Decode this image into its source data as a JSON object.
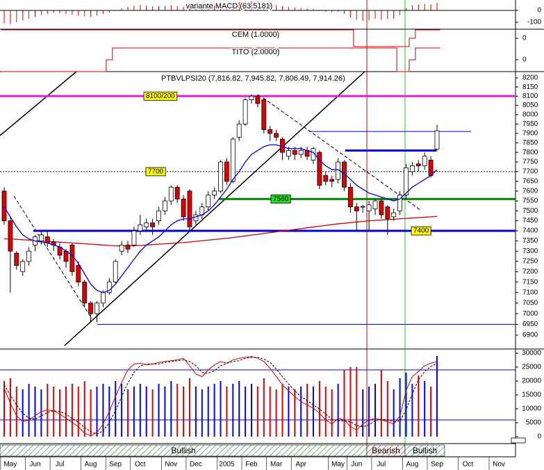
{
  "chart_data": {
    "type": "candlestick",
    "title": "PTBVLPSI20 (7,816.82, 7,945.82, 7,806.49, 7,914.26)",
    "categories": [
      null,
      "May",
      null,
      null,
      null,
      "Jun",
      null,
      null,
      null,
      "Jul",
      null,
      null,
      null,
      null,
      "Aug",
      null,
      null,
      null,
      "Sep",
      null,
      null,
      null,
      "Oct",
      null,
      null,
      null,
      null,
      "Nov",
      null,
      null,
      null,
      "Dec",
      null,
      null,
      null,
      null,
      "2005",
      null,
      null,
      null,
      "Feb",
      null,
      null,
      null,
      "Mar",
      null,
      null,
      null,
      "Apr",
      null,
      null,
      null,
      null,
      null,
      "May",
      null,
      null,
      "Jun",
      null,
      null,
      null,
      "Jul",
      null,
      null,
      null,
      null,
      "Aug",
      null,
      null,
      null,
      "Sep",
      null,
      null,
      null,
      null,
      "Oct",
      null,
      null,
      null,
      null,
      "Nov",
      null,
      null
    ],
    "open": [
      7600,
      7450,
      7290,
      7200,
      7250,
      7330,
      7350,
      7370,
      7345,
      7320,
      7300,
      7330,
      7230,
      7150,
      7050,
      7000,
      7050,
      7100,
      7150,
      7300,
      7330,
      7330,
      7400,
      7420,
      7440,
      7450,
      7500,
      7550,
      7620,
      7560,
      7600,
      7450,
      7480,
      7520,
      7580,
      7600,
      7750,
      7650,
      7880,
      7950,
      8080,
      8100,
      8080,
      7920,
      7900,
      7870,
      7780,
      7810,
      7790,
      7810,
      7760,
      7800,
      7680,
      7660,
      7660,
      7750,
      7620,
      7520,
      7520,
      7500,
      7510,
      7550,
      7520,
      7470,
      7500,
      7580,
      7700,
      7740,
      7730,
      7760,
      7816.82,
      null,
      null,
      null,
      null,
      null,
      null,
      null,
      null,
      null,
      null,
      null,
      null
    ],
    "high": [
      7620,
      7470,
      7300,
      7260,
      7320,
      7380,
      7400,
      7400,
      7360,
      7340,
      7310,
      7340,
      7250,
      7160,
      7060,
      7060,
      7110,
      7170,
      7260,
      7350,
      7350,
      7420,
      7480,
      7460,
      7460,
      7520,
      7570,
      7630,
      7630,
      7580,
      7610,
      7500,
      7540,
      7600,
      7620,
      7760,
      7770,
      7880,
      7970,
      8090,
      8110,
      8110,
      8090,
      7940,
      7920,
      7880,
      7830,
      7830,
      7830,
      7830,
      7830,
      7810,
      7700,
      7680,
      7770,
      7760,
      7640,
      7540,
      7530,
      7550,
      7560,
      7560,
      7530,
      7510,
      7600,
      7740,
      7750,
      7760,
      7800,
      7780,
      7945.82,
      null,
      null,
      null,
      null,
      null,
      null,
      null,
      null,
      null,
      null,
      null,
      null
    ],
    "low": [
      7430,
      7100,
      7210,
      7180,
      7230,
      7300,
      7330,
      7320,
      7300,
      7260,
      7220,
      7180,
      7130,
      7030,
      6960,
      6960,
      7030,
      7090,
      7140,
      7280,
      7290,
      7320,
      7380,
      7400,
      7380,
      7430,
      7480,
      7530,
      7540,
      7450,
      7400,
      7430,
      7460,
      7500,
      7560,
      7590,
      7630,
      7640,
      7860,
      7940,
      8060,
      8040,
      7900,
      7860,
      7860,
      7760,
      7760,
      7760,
      7770,
      7760,
      7740,
      7610,
      7630,
      7620,
      7640,
      7600,
      7490,
      7400,
      7490,
      7400,
      7480,
      7460,
      7380,
      7450,
      7480,
      7560,
      7680,
      7700,
      7710,
      7670,
      7806.49,
      null,
      null,
      null,
      null,
      null,
      null,
      null,
      null,
      null,
      null,
      null,
      null
    ],
    "close": [
      7450,
      7300,
      7230,
      7250,
      7300,
      7370,
      7380,
      7340,
      7330,
      7280,
      7250,
      7200,
      7150,
      7050,
      7000,
      7050,
      7100,
      7150,
      7250,
      7330,
      7310,
      7400,
      7430,
      7440,
      7420,
      7500,
      7550,
      7620,
      7560,
      7470,
      7420,
      7480,
      7520,
      7580,
      7600,
      7750,
      7650,
      7870,
      7950,
      8080,
      8100,
      8060,
      7920,
      7900,
      7880,
      7800,
      7810,
      7790,
      7810,
      7780,
      7820,
      7630,
      7650,
      7650,
      7750,
      7620,
      7520,
      7500,
      7522,
      7530,
      7550,
      7480,
      7460,
      7490,
      7580,
      7720,
      7730,
      7730,
      7780,
      7680,
      7914.26,
      null,
      null,
      null,
      null,
      null,
      null,
      null,
      null,
      null,
      null,
      null,
      null
    ],
    "up_color": "#ffffff",
    "down_color": "#e00000",
    "log_scale": true,
    "ylim": [
      6900,
      8200
    ],
    "yticks": [
      8200,
      8150,
      8100,
      8050,
      8000,
      7950,
      7900,
      7850,
      7800,
      7750,
      7700,
      7650,
      7600,
      7550,
      7500,
      7450,
      7400,
      7350,
      7300,
      7250,
      7200,
      7150,
      7100,
      7050,
      7000,
      6950,
      6900
    ],
    "overlays": [
      {
        "color": "#cc0000",
        "values": [
          7360,
          7360,
          7358,
          7356,
          7354,
          7352,
          7350,
          7348,
          7346,
          7344,
          7342,
          7340,
          7338,
          7336,
          7334,
          7332,
          7330,
          7328,
          7326,
          7326,
          7326,
          7327,
          7328,
          7330,
          7332,
          7334,
          7336,
          7338,
          7340,
          7342,
          7345,
          7348,
          7351,
          7354,
          7357,
          7360,
          7363,
          7367,
          7371,
          7375,
          7379,
          7383,
          7387,
          7391,
          7395,
          7399,
          7403,
          7407,
          7411,
          7415,
          7419,
          7423,
          7427,
          7431,
          7435,
          7438,
          7441,
          7444,
          7447,
          7450,
          7452,
          7454,
          7456,
          7458,
          7460,
          7462,
          7464,
          7466,
          7468,
          7470,
          7472,
          null,
          null,
          null,
          null,
          null,
          null,
          null,
          null,
          null,
          null,
          null,
          null
        ]
      },
      {
        "color": "#0000ee",
        "values": [
          7520,
          7470,
          7420,
          7380,
          7360,
          7350,
          7345,
          7340,
          7330,
          7320,
          7300,
          7280,
          7240,
          7190,
          7140,
          7110,
          7100,
          7110,
          7140,
          7180,
          7220,
          7260,
          7300,
          7330,
          7350,
          7370,
          7400,
          7430,
          7450,
          7460,
          7460,
          7470,
          7480,
          7500,
          7530,
          7570,
          7610,
          7660,
          7700,
          7750,
          7790,
          7810,
          7830,
          7840,
          7840,
          7830,
          7820,
          7820,
          7820,
          7810,
          7800,
          7760,
          7730,
          7710,
          7710,
          7690,
          7660,
          7630,
          7610,
          7590,
          7580,
          7570,
          7560,
          7550,
          7560,
          7590,
          7620,
          7640,
          7660,
          7680,
          7710,
          null,
          null,
          null,
          null,
          null,
          null,
          null,
          null,
          null,
          null,
          null,
          null
        ]
      }
    ],
    "levels": [
      {
        "value": 8100,
        "label": "8100/200",
        "color": "#e020e0"
      },
      {
        "value": 7700,
        "color": "#000000"
      },
      {
        "value": 7560,
        "color": "#008000"
      },
      {
        "value": 7400,
        "color": "#0000cc"
      },
      {
        "value": 7910,
        "color": "#0000cc"
      },
      {
        "value": 7810,
        "color": "#0000cc"
      },
      {
        "value": 6950,
        "color": "#0000cc"
      }
    ],
    "signals": [
      "Bullish",
      "Bearish",
      "Bullish"
    ],
    "indicators": [
      {
        "type": "histogram",
        "title": "variante MACD (63.5181)",
        "color": "#e00000",
        "zero_line": true,
        "ylim": [
          -159,
          88
        ],
        "yticks": [
          0,
          -100
        ],
        "values": [
          -110,
          -115,
          -100,
          -85,
          -70,
          -55,
          -40,
          -30,
          -20,
          -25,
          -30,
          -35,
          -45,
          -50,
          -55,
          -45,
          -30,
          -15,
          5,
          20,
          30,
          40,
          45,
          40,
          35,
          35,
          40,
          45,
          35,
          30,
          20,
          25,
          30,
          35,
          40,
          50,
          50,
          60,
          70,
          75,
          80,
          75,
          65,
          55,
          45,
          35,
          30,
          25,
          20,
          15,
          10,
          -5,
          -10,
          -15,
          -10,
          -30,
          -60,
          -80,
          -90,
          -85,
          -70,
          -80,
          -75,
          -70,
          -40,
          20,
          45,
          50,
          55,
          50,
          63.5181,
          null,
          null,
          null,
          null,
          null,
          null,
          null,
          null,
          null,
          null,
          null,
          null
        ]
      },
      {
        "type": "step",
        "title": "CEM (1.0000)",
        "color": "#cc0000",
        "ylim": [
          -1,
          1
        ],
        "yticks": [
          0
        ],
        "values": [
          1,
          1,
          1,
          1,
          1,
          1,
          1,
          1,
          1,
          1,
          1,
          1,
          1,
          1,
          1,
          1,
          1,
          1,
          1,
          1,
          1,
          1,
          1,
          1,
          1,
          1,
          1,
          1,
          1,
          1,
          1,
          1,
          1,
          1,
          1,
          1,
          1,
          1,
          1,
          1,
          1,
          1,
          1,
          1,
          1,
          1,
          1,
          1,
          1,
          1,
          1,
          1,
          1,
          1,
          1,
          1,
          1,
          -1,
          -1,
          -1,
          -1,
          -1,
          -1,
          -1,
          -1,
          -1,
          0,
          1,
          1,
          1,
          1,
          null,
          null,
          null,
          null,
          null,
          null,
          null,
          null,
          null,
          null,
          null,
          null
        ]
      },
      {
        "type": "step",
        "title": "TITO (2.0000)",
        "color": "#cc0000",
        "ylim": [
          -2,
          2
        ],
        "yticks": [
          0
        ],
        "values": [
          -2,
          -2,
          -2,
          -2,
          -2,
          -2,
          -2,
          -2,
          -2,
          -2,
          -2,
          -2,
          -2,
          -2,
          -2,
          -2,
          -2,
          0,
          2,
          2,
          2,
          2,
          2,
          2,
          2,
          2,
          2,
          2,
          2,
          2,
          2,
          2,
          2,
          2,
          2,
          2,
          2,
          2,
          2,
          2,
          2,
          2,
          2,
          2,
          2,
          2,
          2,
          2,
          2,
          2,
          2,
          2,
          2,
          2,
          2,
          2,
          2,
          2,
          2,
          2,
          2,
          2,
          2,
          2,
          -2,
          -2,
          0,
          2,
          2,
          2,
          2,
          null,
          null,
          null,
          null,
          null,
          null,
          null,
          null,
          null,
          null,
          null,
          null
        ]
      },
      {
        "type": "volume",
        "up_color": "#0000ff",
        "down_color": "#e00000",
        "ylim": [
          0,
          30000
        ],
        "yticks": [
          30000,
          25000,
          20000,
          15000,
          10000,
          5000,
          0
        ],
        "values": [
          20000,
          21000,
          18000,
          17000,
          19000,
          18000,
          17000,
          19000,
          18000,
          17000,
          18000,
          19000,
          18000,
          20000,
          17000,
          18000,
          19000,
          18000,
          20000,
          19000,
          17000,
          18000,
          19000,
          18000,
          17000,
          19000,
          18000,
          20000,
          19000,
          18000,
          21000,
          18000,
          17000,
          18000,
          19000,
          20000,
          18000,
          19000,
          20000,
          18000,
          19000,
          18000,
          21000,
          18000,
          17000,
          19000,
          18000,
          17000,
          18000,
          19000,
          18000,
          20000,
          18000,
          17000,
          19000,
          24000,
          25000,
          25000,
          17000,
          18000,
          19000,
          24000,
          20000,
          17000,
          21000,
          23000,
          19000,
          22000,
          20000,
          18000,
          29000,
          null,
          null,
          null,
          null,
          null,
          null,
          null,
          null,
          null,
          null,
          null,
          null
        ],
        "y2lim": [
          0,
          100
        ],
        "y2levels": [
          80,
          20
        ],
        "y2levels_color": "#0000cc",
        "lines": [
          {
            "color": "#dd0000",
            "axis": "y2",
            "values": [
              58,
              40,
              25,
              18,
              20,
              25,
              30,
              32,
              31,
              27,
              22,
              17,
              12,
              4,
              1,
              5,
              15,
              30,
              48,
              65,
              80,
              87,
              88,
              86,
              87,
              89,
              90,
              91,
              92,
              94,
              85,
              75,
              72,
              80,
              86,
              90,
              88,
              92,
              94,
              95,
              96,
              94,
              90,
              82,
              72,
              62,
              55,
              48,
              42,
              38,
              34,
              28,
              20,
              15,
              22,
              20,
              12,
              8,
              15,
              20,
              22,
              20,
              18,
              15,
              25,
              55,
              72,
              78,
              85,
              88,
              90,
              null,
              null,
              null,
              null,
              null,
              null,
              null,
              null,
              null,
              null,
              null,
              null
            ]
          },
          {
            "color": "#000000",
            "dashed": true,
            "axis": "y2",
            "values": [
              62,
              50,
              38,
              28,
              22,
              21,
              25,
              29,
              31,
              30,
              27,
              22,
              17,
              11,
              6,
              3,
              7,
              17,
              31,
              48,
              64,
              77,
              85,
              87,
              87,
              87,
              89,
              90,
              91,
              92,
              90,
              85,
              77,
              76,
              79,
              85,
              88,
              90,
              91,
              94,
              95,
              95,
              93,
              89,
              81,
              72,
              63,
              55,
              48,
              43,
              38,
              33,
              27,
              21,
              19,
              19,
              18,
              13,
              12,
              14,
              19,
              21,
              20,
              18,
              19,
              32,
              51,
              68,
              78,
              84,
              88,
              null,
              null,
              null,
              null,
              null,
              null,
              null,
              null,
              null,
              null,
              null,
              null
            ]
          }
        ]
      }
    ]
  }
}
